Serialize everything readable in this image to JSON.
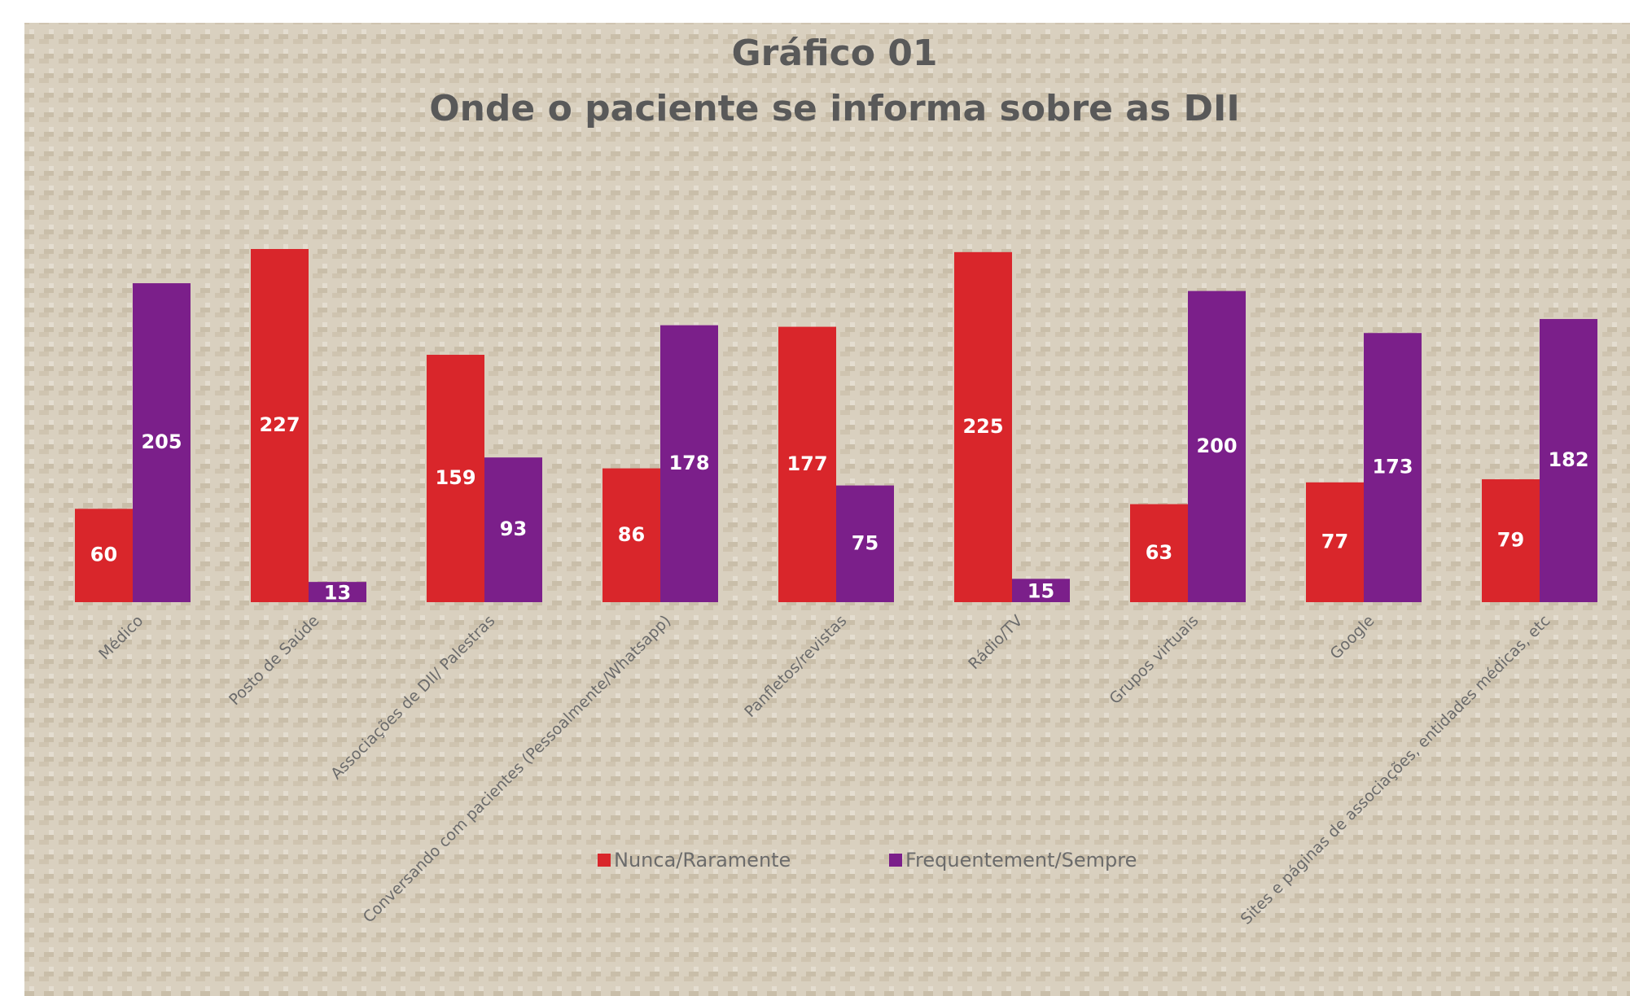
{
  "chart_data": {
    "type": "bar",
    "title": [
      "Gráfico 01",
      "Onde o paciente se informa sobre as DII"
    ],
    "categories": [
      "Médico",
      "Posto de Saúde",
      "Associações de DII/ Palestras",
      "Conversando com pacientes (Pessoalmente/Whatsapp)",
      "Panfletos/revistas",
      "Rádio/TV",
      "Grupos virtuais",
      "Google",
      "Sites e páginas de associações, entidades médicas, etc"
    ],
    "series": [
      {
        "name": "Nunca/Raramente",
        "color": "#d9262b",
        "values": [
          60,
          227,
          159,
          86,
          177,
          225,
          63,
          77,
          79
        ]
      },
      {
        "name": "Frequentement/Sempre",
        "color": "#7b1f8a",
        "values": [
          205,
          13,
          93,
          178,
          75,
          15,
          200,
          173,
          182
        ]
      }
    ],
    "legend": "bottom"
  }
}
